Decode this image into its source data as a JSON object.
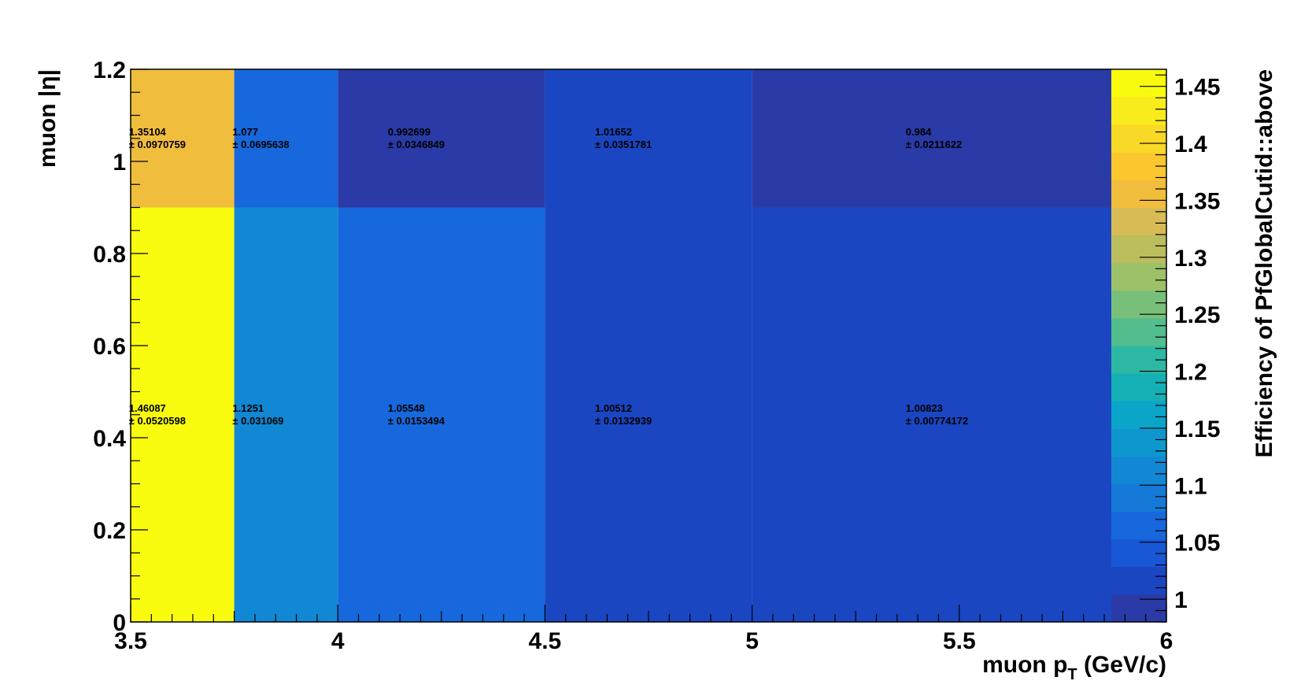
{
  "chart_data": {
    "type": "heatmap",
    "title": "",
    "xlabel": "muon p",
    "xlabel_sub": "T",
    "xlabel_suffix": " (GeV/c)",
    "ylabel": "muon |η|",
    "zlabel": "Efficiency of PfGlobalCutid::above",
    "xlim": [
      3.5,
      6
    ],
    "ylim": [
      0,
      1.2
    ],
    "zlim": [
      0.98,
      1.465
    ],
    "x_edges": [
      3.5,
      3.75,
      4.0,
      4.5,
      5.0,
      6.0
    ],
    "y_edges": [
      0,
      0.9,
      1.2
    ],
    "x_ticks": [
      3.5,
      4,
      4.5,
      5,
      5.5,
      6
    ],
    "x_tick_labels": [
      "3.5",
      "4",
      "4.5",
      "5",
      "5.5",
      "6"
    ],
    "y_ticks": [
      0,
      0.2,
      0.4,
      0.6,
      0.8,
      1,
      1.2
    ],
    "y_tick_labels": [
      "0",
      "0.2",
      "0.4",
      "0.6",
      "0.8",
      "1",
      "1.2"
    ],
    "z_ticks": [
      1,
      1.05,
      1.1,
      1.15,
      1.2,
      1.25,
      1.3,
      1.35,
      1.4,
      1.45
    ],
    "z_tick_labels": [
      "1",
      "1.05",
      "1.1",
      "1.15",
      "1.2",
      "1.25",
      "1.3",
      "1.35",
      "1.4",
      "1.45"
    ],
    "palette": [
      "#2a3aa6",
      "#1b46c2",
      "#1857d6",
      "#1668dc",
      "#1579d8",
      "#1288d4",
      "#0e97cf",
      "#0aa5c8",
      "#14b0b6",
      "#2cb8a2",
      "#52bd8d",
      "#78c079",
      "#9cc169",
      "#bcbd5d",
      "#d8bb55",
      "#f0bd3c",
      "#fbc72e",
      "#f8d925",
      "#f8ec1c",
      "#f9fb0e"
    ],
    "cells": [
      {
        "xbin": 0,
        "ybin": 0,
        "value": 1.46087,
        "label": "1.46087",
        "err": "± 0.0520598"
      },
      {
        "xbin": 1,
        "ybin": 0,
        "value": 1.1251,
        "label": "1.1251",
        "err": "± 0.031069"
      },
      {
        "xbin": 2,
        "ybin": 0,
        "value": 1.05548,
        "label": "1.05548",
        "err": "± 0.0153494"
      },
      {
        "xbin": 3,
        "ybin": 0,
        "value": 1.00512,
        "label": "1.00512",
        "err": "± 0.0132939"
      },
      {
        "xbin": 4,
        "ybin": 0,
        "value": 1.00823,
        "label": "1.00823",
        "err": "± 0.00774172"
      },
      {
        "xbin": 0,
        "ybin": 1,
        "value": 1.35104,
        "label": "1.35104",
        "err": "± 0.0970759"
      },
      {
        "xbin": 1,
        "ybin": 1,
        "value": 1.077,
        "label": "1.077",
        "err": "± 0.0695638"
      },
      {
        "xbin": 2,
        "ybin": 1,
        "value": 0.992699,
        "label": "0.992699",
        "err": "± 0.0346849"
      },
      {
        "xbin": 3,
        "ybin": 1,
        "value": 1.01652,
        "label": "1.01652",
        "err": "± 0.0351781"
      },
      {
        "xbin": 4,
        "ybin": 1,
        "value": 0.984,
        "label": "0.984",
        "err": "± 0.0211622"
      }
    ],
    "grid": false,
    "legend": "none",
    "colorbar": "right"
  }
}
